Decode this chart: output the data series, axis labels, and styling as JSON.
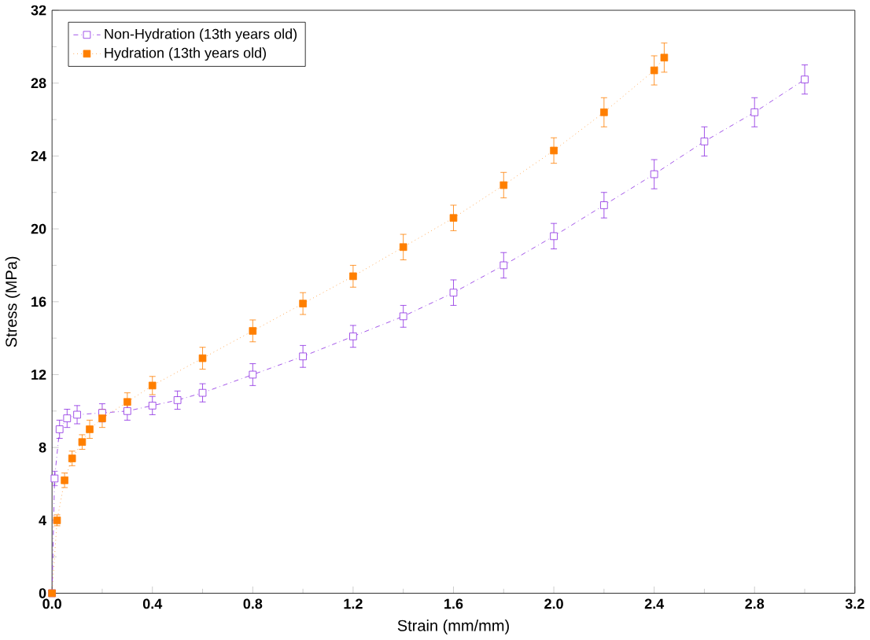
{
  "chart_data": {
    "type": "line",
    "xlabel": "Strain (mm/mm)",
    "ylabel": "Stress (MPa)",
    "xlim": [
      0,
      3.2
    ],
    "ylim": [
      0,
      32
    ],
    "xticks": [
      {
        "value": 0,
        "label": "0.0"
      },
      0.4,
      0.8,
      1.2,
      1.6,
      {
        "value": 2,
        "label": "2.0"
      },
      2.4,
      2.8,
      3.2
    ],
    "yticks": [
      0,
      4,
      8,
      12,
      16,
      20,
      24,
      28,
      32
    ],
    "grid": false,
    "legend": "top left",
    "marker": "square",
    "series": [
      {
        "name": "Non-Hydration (13th years old)",
        "color": "#8b2be2",
        "line_style": "dashdot",
        "x": [
          0,
          0.01,
          0.03,
          0.06,
          0.1,
          0.2,
          0.3,
          0.4,
          0.5,
          0.6,
          0.8,
          1.0,
          1.2,
          1.4,
          1.6,
          1.8,
          2.0,
          2.2,
          2.4,
          2.6,
          2.8,
          3.0
        ],
        "values": [
          0,
          6.3,
          9.0,
          9.6,
          9.8,
          9.9,
          10.0,
          10.3,
          10.6,
          11.0,
          12.0,
          13.0,
          14.1,
          15.2,
          16.5,
          18.0,
          19.6,
          21.3,
          23.0,
          24.8,
          26.4,
          28.2
        ],
        "errors": [
          null,
          0.4,
          0.5,
          0.5,
          0.5,
          0.5,
          0.5,
          0.5,
          0.5,
          0.5,
          0.6,
          0.6,
          0.6,
          0.6,
          0.7,
          0.7,
          0.7,
          0.7,
          0.8,
          0.8,
          0.8,
          0.8
        ]
      },
      {
        "name": "Hydration (13th years old)",
        "color": "#ff7f00",
        "line_style": "dotted",
        "x": [
          0,
          0.02,
          0.05,
          0.08,
          0.12,
          0.15,
          0.2,
          0.3,
          0.4,
          0.6,
          0.8,
          1.0,
          1.2,
          1.4,
          1.6,
          1.8,
          2.0,
          2.2,
          2.4,
          2.44
        ],
        "values": [
          0,
          4.0,
          6.2,
          7.4,
          8.3,
          9.0,
          9.6,
          10.5,
          11.4,
          12.9,
          14.4,
          15.9,
          17.4,
          19.0,
          20.6,
          22.4,
          24.3,
          26.4,
          28.7,
          29.4
        ],
        "errors": [
          null,
          0.3,
          0.4,
          0.4,
          0.4,
          0.5,
          0.5,
          0.5,
          0.5,
          0.6,
          0.6,
          0.6,
          0.6,
          0.7,
          0.7,
          0.7,
          0.7,
          0.8,
          0.8,
          0.8
        ]
      }
    ]
  }
}
